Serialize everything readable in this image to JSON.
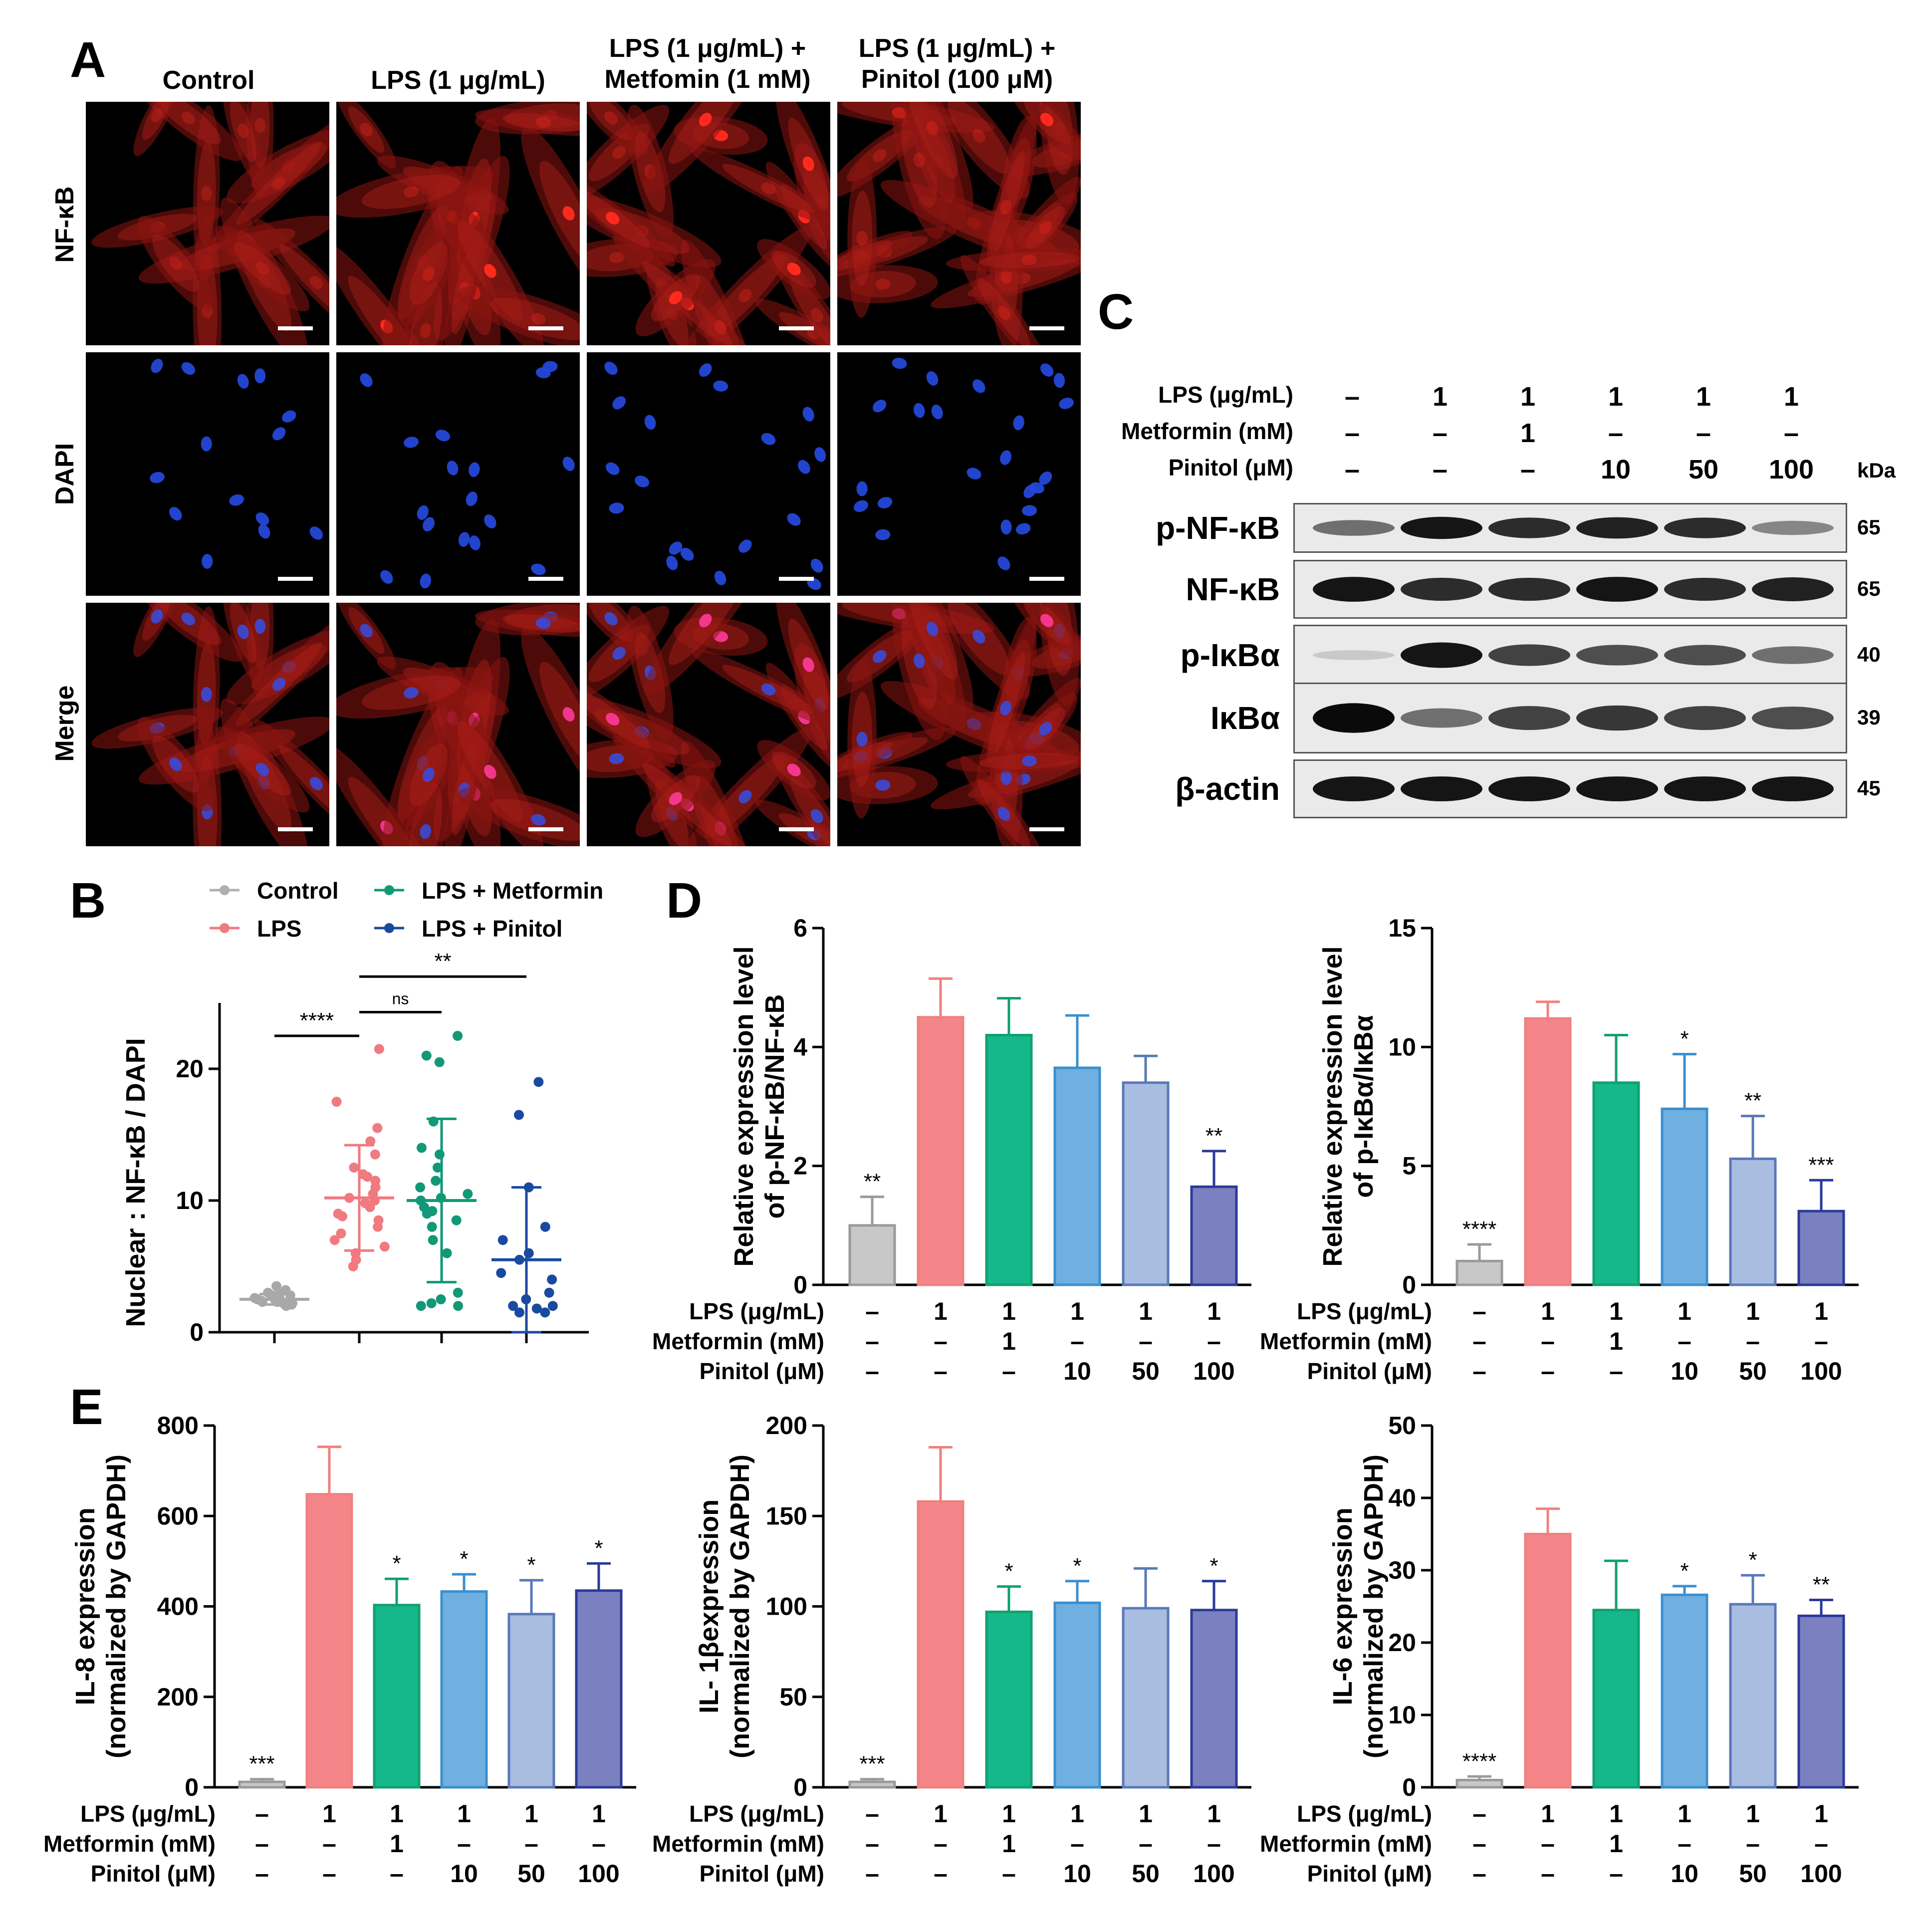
{
  "panels": {
    "A": "A",
    "B": "B",
    "C": "C",
    "D": "D",
    "E": "E"
  },
  "panel_a": {
    "columns": [
      "Control",
      "LPS (1 μg/mL)",
      "LPS (1 μg/mL) +\nMetfomin (1 mM)",
      "LPS (1 μg/mL) +\nPinitol (100 μM)"
    ],
    "rows": [
      "NF-κB",
      "DAPI",
      "Merge"
    ],
    "colors": {
      "nfkb": "#ff2a1e",
      "dapi": "#2448d8",
      "merge_nuc": "#ff3a9a"
    }
  },
  "condition_rows": {
    "lps_label": "LPS (μg/mL)",
    "metformin_label": "Metformin (mM)",
    "pinitol_label": "Pinitol (μM)",
    "lps": [
      "–",
      "1",
      "1",
      "1",
      "1",
      "1"
    ],
    "metformin": [
      "–",
      "–",
      "1",
      "–",
      "–",
      "–"
    ],
    "pinitol": [
      "–",
      "–",
      "–",
      "10",
      "50",
      "100"
    ]
  },
  "panel_c": {
    "kda_header": "kDa",
    "bands": [
      {
        "label": "p-NF-κB",
        "kda": "65",
        "intensity": [
          0.55,
          0.95,
          0.85,
          0.9,
          0.85,
          0.45
        ]
      },
      {
        "label": "NF-κB",
        "kda": "65",
        "intensity": [
          0.95,
          0.85,
          0.85,
          0.95,
          0.85,
          0.9
        ]
      },
      {
        "label": "p-IκBα",
        "kda": "40",
        "intensity": [
          0.15,
          0.95,
          0.75,
          0.7,
          0.7,
          0.55
        ]
      },
      {
        "label": "IκBα",
        "kda": "39",
        "intensity": [
          1.0,
          0.55,
          0.75,
          0.8,
          0.75,
          0.7
        ]
      },
      {
        "label": "β-actin",
        "kda": "45",
        "intensity": [
          0.95,
          0.95,
          0.95,
          0.95,
          0.95,
          0.95
        ]
      }
    ]
  },
  "group_colors": [
    "#c8c8c8",
    "#f4868a",
    "#14b88a",
    "#6fb0e0",
    "#a8bde0",
    "#7a80c0"
  ],
  "group_edges": [
    "#9a9a9a",
    "#f08080",
    "#10a070",
    "#3a8fd0",
    "#5a78b8",
    "#2a3a9a"
  ],
  "chart_data": [
    {
      "id": "B",
      "type": "scatter",
      "ylabel": "Nuclear : NF-κB / DAPI",
      "ylim": [
        0,
        25
      ],
      "yticks": [
        0,
        10,
        20
      ],
      "legend": [
        {
          "name": "Control",
          "color": "#b0b0b0"
        },
        {
          "name": "LPS",
          "color": "#f07a80"
        },
        {
          "name": "LPS + Metformin",
          "color": "#119977"
        },
        {
          "name": "LPS + Pinitol",
          "color": "#1a4aa0"
        }
      ],
      "series": [
        {
          "name": "Control",
          "color": "#a8a8a8",
          "mean": 2.5,
          "sd": 0.4,
          "points": [
            2.1,
            2.2,
            2.3,
            2.4,
            2.5,
            2.6,
            2.7,
            2.8,
            2.9,
            3.0,
            3.2,
            3.5,
            2.0,
            2.3,
            2.6,
            2.4,
            2.2,
            2.8,
            2.5,
            2.1
          ]
        },
        {
          "name": "LPS",
          "color": "#f07a80",
          "mean": 10.2,
          "sd": 4.0,
          "points": [
            21.5,
            17.5,
            15.5,
            14.5,
            13.5,
            12.5,
            12.0,
            11.5,
            11.0,
            10.5,
            10.2,
            10.0,
            9.5,
            9.0,
            8.5,
            8.0,
            7.5,
            7.0,
            6.5,
            6.0,
            5.5,
            5.0,
            9.8,
            11.8,
            8.8
          ]
        },
        {
          "name": "LPS + Metformin",
          "color": "#119977",
          "mean": 10.0,
          "sd": 6.2,
          "points": [
            22.5,
            21.0,
            20.5,
            16.0,
            14.0,
            13.5,
            12.5,
            11.5,
            11.0,
            10.5,
            10.0,
            9.5,
            9.0,
            8.5,
            8.0,
            7.0,
            6.0,
            3.0,
            2.5,
            2.2,
            2.0,
            2.0,
            10.2,
            9.2
          ]
        },
        {
          "name": "LPS + Pinitol",
          "color": "#1a4aa0",
          "mean": 5.5,
          "sd": 5.5,
          "points": [
            19.0,
            16.5,
            11.0,
            8.0,
            7.0,
            6.0,
            5.5,
            4.5,
            4.0,
            3.0,
            2.5,
            2.0,
            2.0,
            1.8,
            1.5,
            1.5
          ]
        }
      ],
      "significance": [
        {
          "label": "****",
          "from": 0,
          "to": 1,
          "y": 22.5
        },
        {
          "label": "ns",
          "from": 1,
          "to": 2,
          "y": 24.3
        },
        {
          "label": "**",
          "from": 1,
          "to": 3,
          "y": 27.0
        }
      ]
    },
    {
      "id": "D1",
      "type": "bar",
      "ylabel": "Relative expression level\nof p-NF-κB/NF-κB",
      "ylim": [
        0,
        6
      ],
      "yticks": [
        0,
        2,
        4,
        6
      ],
      "values": [
        1.0,
        4.5,
        4.2,
        3.65,
        3.4,
        1.65
      ],
      "errors": [
        0.48,
        0.65,
        0.62,
        0.88,
        0.45,
        0.6
      ],
      "sig": [
        "**",
        "",
        "",
        "",
        "",
        "**"
      ]
    },
    {
      "id": "D2",
      "type": "bar",
      "ylabel": "Relative expression level\nof p-IκBα/IκBα",
      "ylim": [
        0,
        15
      ],
      "yticks": [
        0,
        5,
        10,
        15
      ],
      "values": [
        1.0,
        11.2,
        8.5,
        7.4,
        5.3,
        3.1
      ],
      "errors": [
        0.7,
        0.7,
        2.0,
        2.3,
        1.8,
        1.3
      ],
      "sig": [
        "****",
        "",
        "",
        "*",
        "**",
        "***"
      ]
    },
    {
      "id": "E1",
      "type": "bar",
      "ylabel": "IL-8 expression\n(normalized by GAPDH)",
      "ylim": [
        0,
        800
      ],
      "yticks": [
        0,
        200,
        400,
        600,
        800
      ],
      "values": [
        12,
        648,
        403,
        433,
        383,
        435
      ],
      "errors": [
        6,
        105,
        58,
        38,
        75,
        60
      ],
      "sig": [
        "***",
        "",
        "*",
        "*",
        "*",
        "*"
      ]
    },
    {
      "id": "E2",
      "type": "bar",
      "ylabel": "IL- 1βexpression\n(normalized by GAPDH)",
      "ylim": [
        0,
        200
      ],
      "yticks": [
        0,
        50,
        100,
        150,
        200
      ],
      "values": [
        3,
        158,
        97,
        102,
        99,
        98
      ],
      "errors": [
        1.5,
        30,
        14,
        12,
        22,
        16
      ],
      "sig": [
        "***",
        "",
        "*",
        "*",
        "",
        "*"
      ]
    },
    {
      "id": "E3",
      "type": "bar",
      "ylabel": "IL-6 expression\n(normalized by GAPDH)",
      "ylim": [
        0,
        50
      ],
      "yticks": [
        0,
        10,
        20,
        30,
        40,
        50
      ],
      "values": [
        1,
        35,
        24.5,
        26.6,
        25.3,
        23.7
      ],
      "errors": [
        0.5,
        3.5,
        6.8,
        1.2,
        4.0,
        2.2
      ],
      "sig": [
        "****",
        "",
        "",
        "*",
        "*",
        "**"
      ]
    }
  ]
}
